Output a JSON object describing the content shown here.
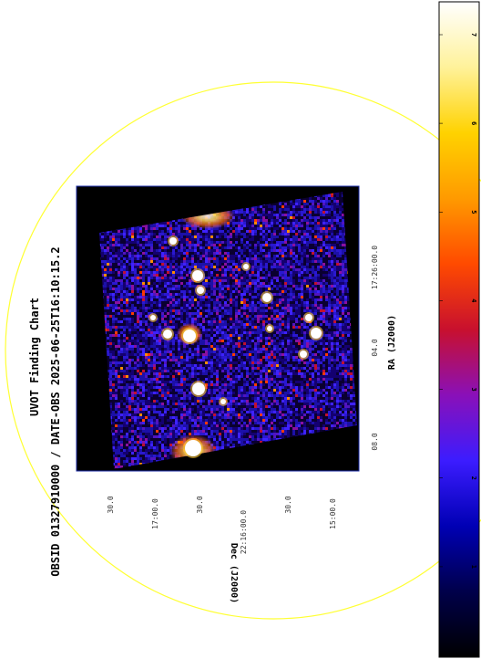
{
  "title": {
    "line1": "UVOT Finding Chart",
    "line2": "OBSID 01327910000 / DATE-OBS 2025-06-25T16:10:15.2"
  },
  "axes": {
    "ra_label": "RA (J2000)",
    "dec_label": "Dec (J2000)",
    "ra_ticks": [
      "08.0",
      "04.0",
      "17:26:00.0"
    ],
    "dec_ticks": [
      "30.0",
      "17:00.0",
      "30.0",
      "22:16:00.0",
      "30.0",
      "15:00.0"
    ]
  },
  "colorbar": {
    "ticks": [
      "0",
      "1",
      "2",
      "3",
      "4",
      "5",
      "6",
      "7"
    ],
    "colormap": [
      "#000000",
      "#00004a",
      "#0000b4",
      "#3c1cff",
      "#8a10b8",
      "#c8102e",
      "#ff4a00",
      "#ff9a00",
      "#ffd200",
      "#fff29a",
      "#ffffff"
    ]
  },
  "overlay": {
    "circle_color": "#ffff33",
    "frame_color": "#1a2aa6",
    "background_color": "#000000"
  },
  "sources": {
    "bright_color": "#ffffff",
    "halo_color": "#ffc832"
  }
}
